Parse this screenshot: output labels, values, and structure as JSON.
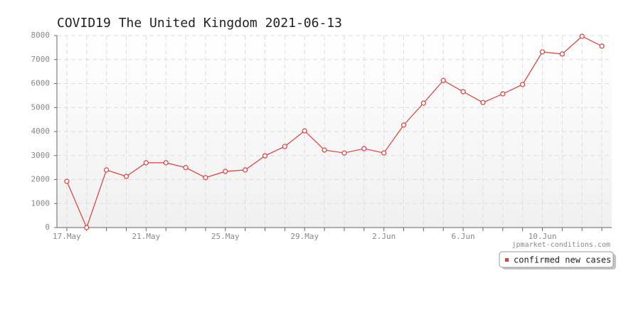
{
  "chart_data": {
    "type": "line",
    "title": "COVID19 The United Kingdom 2021-06-13",
    "categories": [
      "17.May",
      null,
      null,
      null,
      "21.May",
      null,
      null,
      null,
      "25.May",
      null,
      null,
      null,
      "29.May",
      null,
      null,
      null,
      "2.Jun",
      null,
      null,
      null,
      "6.Jun",
      null,
      null,
      null,
      "10.Jun",
      null,
      null,
      null
    ],
    "series": [
      {
        "name": "confirmed new cases",
        "color": "#e03c3c",
        "values": [
          1926,
          0,
          2400,
          2130,
          2700,
          2700,
          2500,
          2080,
          2340,
          2400,
          2990,
          3380,
          4030,
          3230,
          3110,
          3290,
          3110,
          4270,
          5185,
          6130,
          5660,
          5210,
          5570,
          5960,
          7320,
          7230,
          7970,
          7560
        ]
      }
    ],
    "ylim": [
      0,
      8000
    ],
    "yticks": [
      0,
      1000,
      2000,
      3000,
      4000,
      5000,
      6000,
      7000,
      8000
    ],
    "grid": true,
    "legend": "bottom-right",
    "watermark": "jpmarket-conditions.com"
  }
}
